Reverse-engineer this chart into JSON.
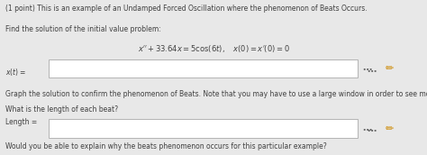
{
  "bg_color": "#e8e8e8",
  "text_color": "#404040",
  "line1": "(1 point) This is an example of an Undamped Forced Oscillation where the phenomenon of Beats Occurs.",
  "line2": "Find the solution of the initial value problem:",
  "equation": "$x'' + 33.64x = 5\\cos(6t), \\quad x(0) = x'(0) = 0$",
  "label_xt": "$x(t) =$",
  "line3": "Graph the solution to confirm the phenomenon of Beats. Note that you may have to use a large window in order to see more than one beat.",
  "line4": "What is the length of each beat?",
  "label_length": "Length =",
  "line5": "Would you be able to explain why the beats phenomenon occurs for this particular example?",
  "input_box_color": "#ffffff",
  "input_box_border": "#aaaaaa",
  "grid_icon_color": "#666666",
  "pencil_color": "#cc8800",
  "fs_main": 5.5,
  "fs_eq": 6.0
}
